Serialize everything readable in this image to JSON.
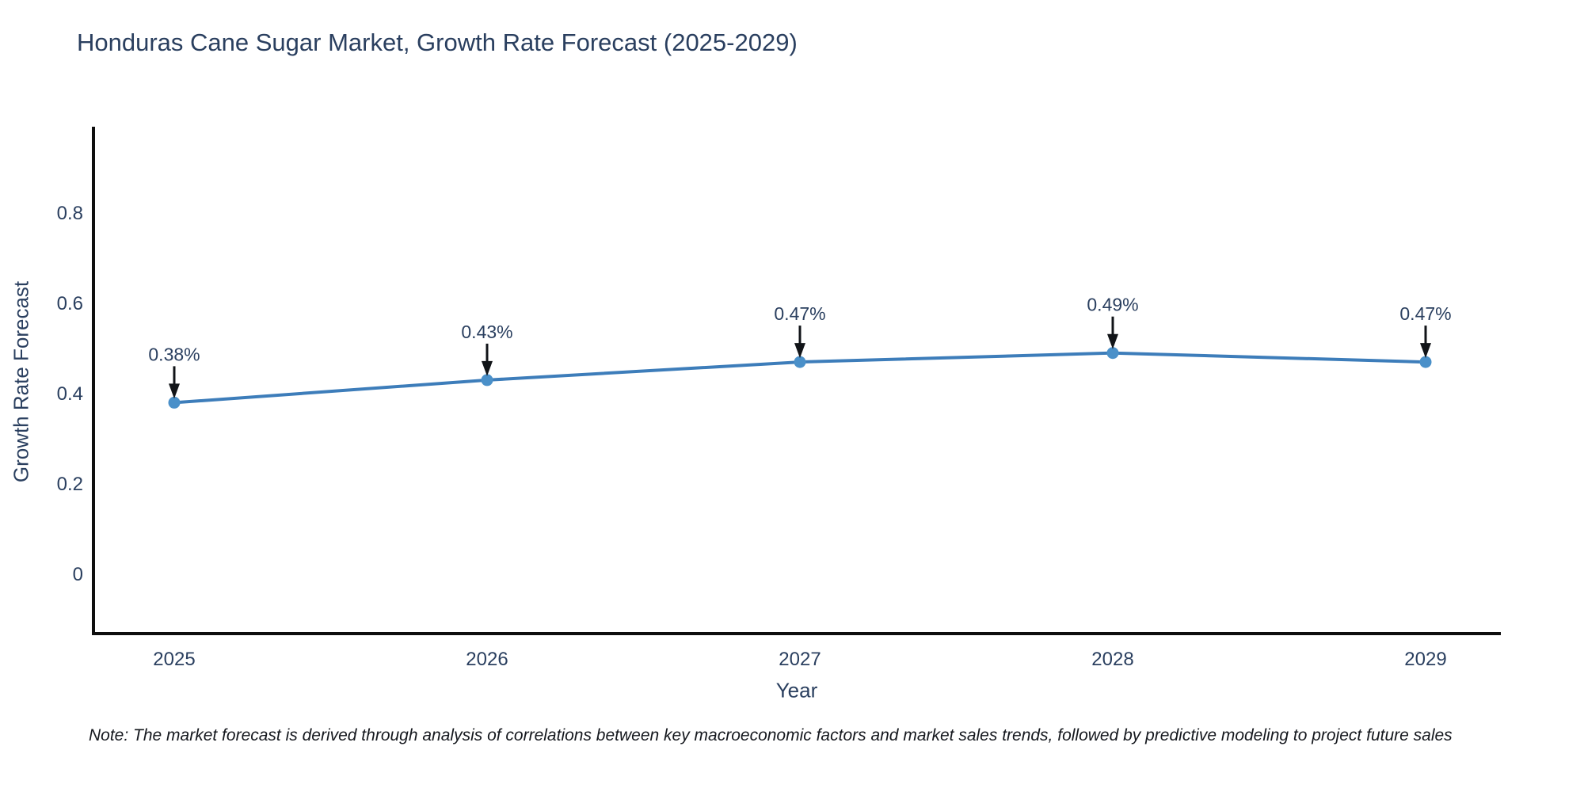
{
  "title": "Honduras Cane Sugar Market, Growth Rate Forecast (2025-2029)",
  "chart_data": {
    "type": "line",
    "x": [
      "2025",
      "2026",
      "2027",
      "2028",
      "2029"
    ],
    "series": [
      {
        "name": "Growth Rate Forecast",
        "values": [
          0.38,
          0.43,
          0.47,
          0.49,
          0.47
        ]
      }
    ],
    "point_labels": [
      "0.38%",
      "0.43%",
      "0.47%",
      "0.49%",
      "0.47%"
    ],
    "title": "Honduras Cane Sugar Market, Growth Rate Forecast (2025-2029)",
    "xlabel": "Year",
    "ylabel": "Growth Rate Forecast",
    "yticks": [
      0,
      0.2,
      0.4,
      0.6,
      0.8
    ],
    "ylim": [
      -0.13,
      1.0
    ],
    "grid": false,
    "legend_position": "none",
    "annotations_have_arrows": true
  },
  "note": "Note: The market forecast is derived through analysis of correlations between key macroeconomic factors and market sales trends, followed by predictive modeling to project future sales",
  "colors": {
    "title_text": "#2a3f5f",
    "tick_text": "#2a3f5f",
    "axis_line": "#0e0e0e",
    "line": "#3d7dba",
    "marker": "#4a90c9",
    "arrow": "#111418",
    "background": "#ffffff"
  }
}
